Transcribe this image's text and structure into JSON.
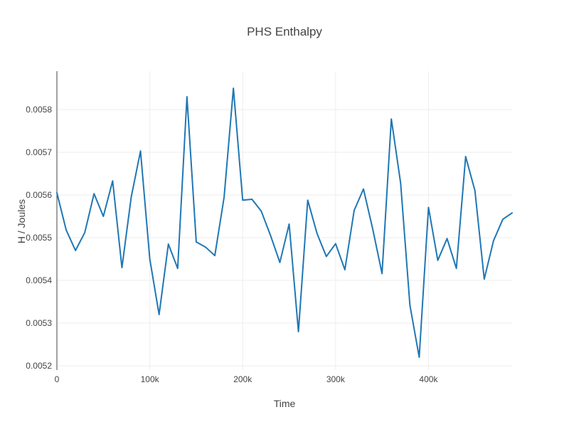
{
  "chart_data": {
    "type": "line",
    "title": "PHS Enthalpy",
    "xlabel": "Time",
    "ylabel": "H / Joules",
    "xlim": [
      0,
      490000
    ],
    "ylim": [
      0.00519,
      0.00589
    ],
    "x_ticks": [
      0,
      100000,
      200000,
      300000,
      400000
    ],
    "x_tick_labels": [
      "0",
      "100k",
      "200k",
      "300k",
      "400k"
    ],
    "y_ticks": [
      0.0052,
      0.0053,
      0.0054,
      0.0055,
      0.0056,
      0.0057,
      0.0058
    ],
    "y_tick_labels": [
      "0.0052",
      "0.0053",
      "0.0054",
      "0.0055",
      "0.0056",
      "0.0057",
      "0.0058"
    ],
    "grid": true,
    "series": [
      {
        "color": "#1f77b4",
        "x": [
          0,
          10000,
          20000,
          30000,
          40000,
          50000,
          60000,
          70000,
          80000,
          90000,
          100000,
          110000,
          120000,
          130000,
          140000,
          150000,
          160000,
          170000,
          180000,
          190000,
          200000,
          210000,
          220000,
          230000,
          240000,
          250000,
          260000,
          270000,
          280000,
          290000,
          300000,
          310000,
          320000,
          330000,
          340000,
          350000,
          360000,
          370000,
          380000,
          390000,
          400000,
          410000,
          420000,
          430000,
          440000,
          450000,
          460000,
          470000,
          480000,
          490000
        ],
        "y": [
          0.005605,
          0.005518,
          0.00547,
          0.005512,
          0.005603,
          0.00555,
          0.005633,
          0.00543,
          0.005595,
          0.005703,
          0.00545,
          0.00532,
          0.005485,
          0.005428,
          0.00583,
          0.00549,
          0.005478,
          0.005458,
          0.005595,
          0.00585,
          0.005588,
          0.00559,
          0.005562,
          0.005505,
          0.005442,
          0.005532,
          0.00528,
          0.005588,
          0.00551,
          0.005456,
          0.005486,
          0.005425,
          0.005564,
          0.005614,
          0.00552,
          0.005416,
          0.005778,
          0.005628,
          0.005342,
          0.00522,
          0.005571,
          0.005447,
          0.005498,
          0.005428,
          0.00569,
          0.00561,
          0.005403,
          0.005493,
          0.005543,
          0.005558
        ]
      }
    ]
  }
}
